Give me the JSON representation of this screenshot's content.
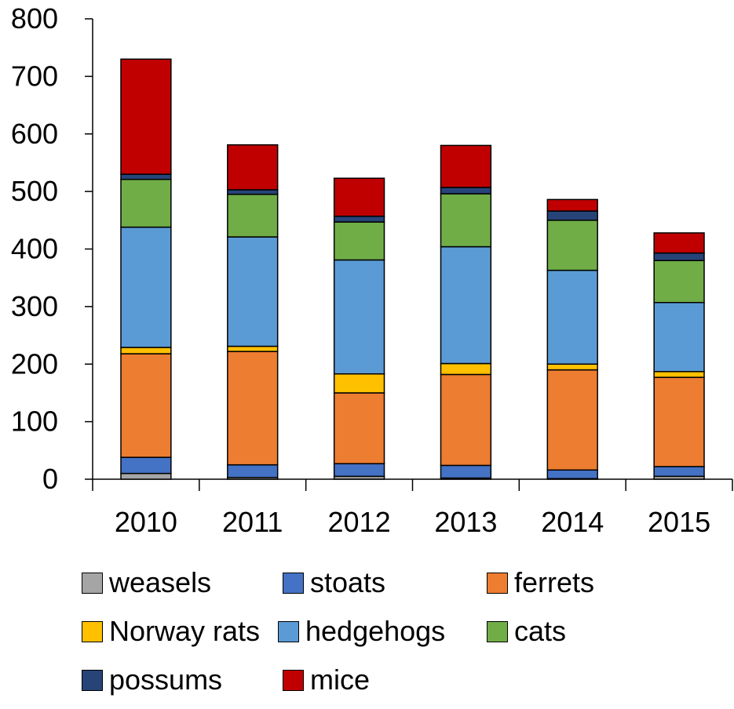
{
  "chart_data": {
    "type": "bar",
    "stacked": true,
    "categories": [
      "2010",
      "2011",
      "2012",
      "2013",
      "2014",
      "2015"
    ],
    "ylim": [
      0,
      800
    ],
    "yticks": [
      0,
      100,
      200,
      300,
      400,
      500,
      600,
      700,
      800
    ],
    "ytick_labels": [
      "0",
      "100",
      "200",
      "300",
      "400",
      "500",
      "600",
      "700",
      "800"
    ],
    "grid": false,
    "legend_position": "bottom",
    "series": [
      {
        "name": "weasels",
        "color": "#a5a5a5",
        "values": [
          10,
          3,
          5,
          2,
          1,
          5
        ]
      },
      {
        "name": "stoats",
        "color": "#4472c4",
        "values": [
          28,
          22,
          22,
          22,
          15,
          17
        ]
      },
      {
        "name": "ferrets",
        "color": "#ed7d31",
        "values": [
          180,
          197,
          123,
          158,
          174,
          155
        ]
      },
      {
        "name": "Norway rats",
        "color": "#ffc000",
        "values": [
          11,
          9,
          33,
          19,
          10,
          10
        ]
      },
      {
        "name": "hedgehogs",
        "color": "#5b9bd5",
        "values": [
          209,
          190,
          198,
          203,
          163,
          120
        ]
      },
      {
        "name": "cats",
        "color": "#70ad47",
        "values": [
          83,
          74,
          66,
          92,
          87,
          73
        ]
      },
      {
        "name": "possums",
        "color": "#264478",
        "values": [
          9,
          8,
          10,
          11,
          16,
          13
        ]
      },
      {
        "name": "mice",
        "color": "#c00000",
        "values": [
          200,
          78,
          66,
          73,
          20,
          35
        ]
      }
    ]
  }
}
